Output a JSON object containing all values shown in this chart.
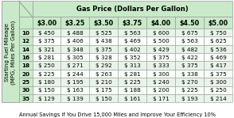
{
  "title": "Gas Price (Dollars Per Gallon)",
  "col_headers": [
    "",
    "$3.00",
    "$3.25",
    "$3.50",
    "$3.75",
    "$4.00",
    "$4.50",
    "$5.00"
  ],
  "row_labels": [
    "10",
    "12",
    "14",
    "16",
    "18",
    "20",
    "25",
    "30",
    "35"
  ],
  "table_data": [
    [
      "$ 450",
      "$ 488",
      "$ 525",
      "$ 563",
      "$ 600",
      "$ 675",
      "$ 750"
    ],
    [
      "$ 375",
      "$ 406",
      "$ 438",
      "$ 469",
      "$ 500",
      "$ 563",
      "$ 625"
    ],
    [
      "$ 321",
      "$ 348",
      "$ 375",
      "$ 402",
      "$ 429",
      "$ 482",
      "$ 536"
    ],
    [
      "$ 281",
      "$ 305",
      "$ 328",
      "$ 352",
      "$ 375",
      "$ 422",
      "$ 469"
    ],
    [
      "$ 250",
      "$ 271",
      "$ 292",
      "$ 313",
      "$ 333",
      "$ 375",
      "$ 417"
    ],
    [
      "$ 225",
      "$ 244",
      "$ 263",
      "$ 281",
      "$ 300",
      "$ 338",
      "$ 375"
    ],
    [
      "$ 180",
      "$ 195",
      "$ 210",
      "$ 225",
      "$ 240",
      "$ 270",
      "$ 300"
    ],
    [
      "$ 150",
      "$ 163",
      "$ 175",
      "$ 188",
      "$ 200",
      "$ 225",
      "$ 250"
    ],
    [
      "$ 129",
      "$ 139",
      "$ 150",
      "$ 161",
      "$ 171",
      "$ 193",
      "$ 214"
    ]
  ],
  "y_label_line1": "Starting Fuel Mileage",
  "y_label_line2": "(MPG, Miles Per Gallon)",
  "footer": "Annual Savings if You Drive 15,000 Miles and Improve Your Efficiency 10%",
  "header_bg": "#c8eac8",
  "cell_bg_even": "#e8f4e8",
  "cell_bg_odd": "#f8fff8",
  "border_color": "#999999",
  "title_fontsize": 6.0,
  "header_fontsize": 5.8,
  "cell_fontsize": 5.2,
  "footer_fontsize": 4.8,
  "ylabel_fontsize": 5.0
}
